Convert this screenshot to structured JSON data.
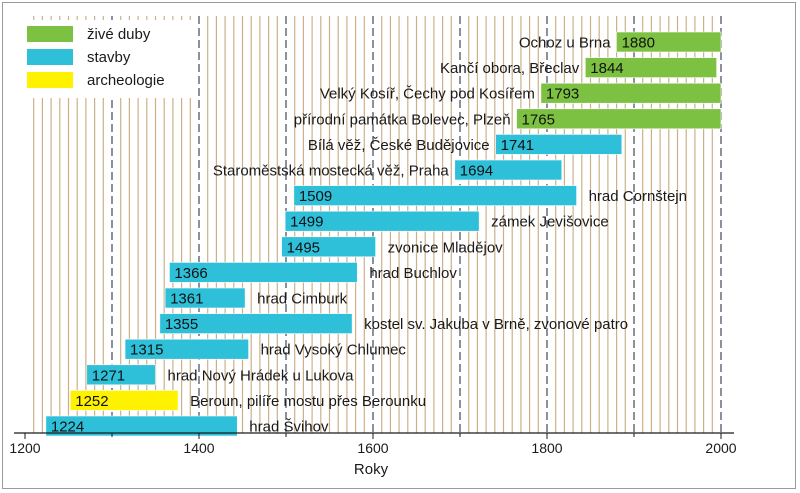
{
  "chart_data": {
    "type": "bar",
    "orientation": "horizontal-range",
    "xlabel": "Roky",
    "xlim": [
      1200,
      2000
    ],
    "x_ticks": [
      1200,
      1400,
      1600,
      1800,
      2000
    ],
    "legend": [
      {
        "name": "živé duby",
        "color": "#7cc142"
      },
      {
        "name": "stavby",
        "color": "#2ebfd9"
      },
      {
        "name": "archeologie",
        "color": "#fff200"
      }
    ],
    "legend_position": "top-left",
    "grid": true,
    "bars": [
      {
        "label": "Ochoz u Brna",
        "start": 1880,
        "end": 2000,
        "category": "živé duby",
        "label_side": "left"
      },
      {
        "label": "Kančí obora, Břeclav",
        "start": 1844,
        "end": 1995,
        "category": "živé duby",
        "label_side": "left"
      },
      {
        "label": "Velký Kosíř, Čechy pod Kosířem",
        "start": 1793,
        "end": 2000,
        "category": "živé duby",
        "label_side": "left"
      },
      {
        "label": "přírodní památka Bolevec, Plzeň",
        "start": 1765,
        "end": 2000,
        "category": "živé duby",
        "label_side": "left"
      },
      {
        "label": "Bílá věž, České Budějovice",
        "start": 1741,
        "end": 1886,
        "category": "stavby",
        "label_side": "left"
      },
      {
        "label": "Staroměstská mostecká věž, Praha",
        "start": 1694,
        "end": 1817,
        "category": "stavby",
        "label_side": "left"
      },
      {
        "label": "hrad Cornštejn",
        "start": 1509,
        "end": 1834,
        "category": "stavby",
        "label_side": "right"
      },
      {
        "label": "zámek Jevišovice",
        "start": 1499,
        "end": 1722,
        "category": "stavby",
        "label_side": "right"
      },
      {
        "label": "zvonice Mladějov",
        "start": 1495,
        "end": 1603,
        "category": "stavby",
        "label_side": "right"
      },
      {
        "label": "hrad Buchlov",
        "start": 1366,
        "end": 1582,
        "category": "stavby",
        "label_side": "right"
      },
      {
        "label": "hrad Cimburk",
        "start": 1361,
        "end": 1453,
        "category": "stavby",
        "label_side": "right"
      },
      {
        "label": "kostel sv. Jakuba v Brně, zvonové patro",
        "start": 1355,
        "end": 1576,
        "category": "stavby",
        "label_side": "right"
      },
      {
        "label": "hrad Vysoký Chlumec",
        "start": 1315,
        "end": 1457,
        "category": "stavby",
        "label_side": "right"
      },
      {
        "label": "hrad Nový Hrádek u Lukova",
        "start": 1271,
        "end": 1350,
        "category": "stavby",
        "label_side": "right"
      },
      {
        "label": "Beroun, pilíře mostu přes Berounku",
        "start": 1252,
        "end": 1376,
        "category": "archeologie",
        "label_side": "right"
      },
      {
        "label": "hrad Švihov",
        "start": 1224,
        "end": 1444,
        "category": "stavby",
        "label_side": "right"
      }
    ]
  }
}
